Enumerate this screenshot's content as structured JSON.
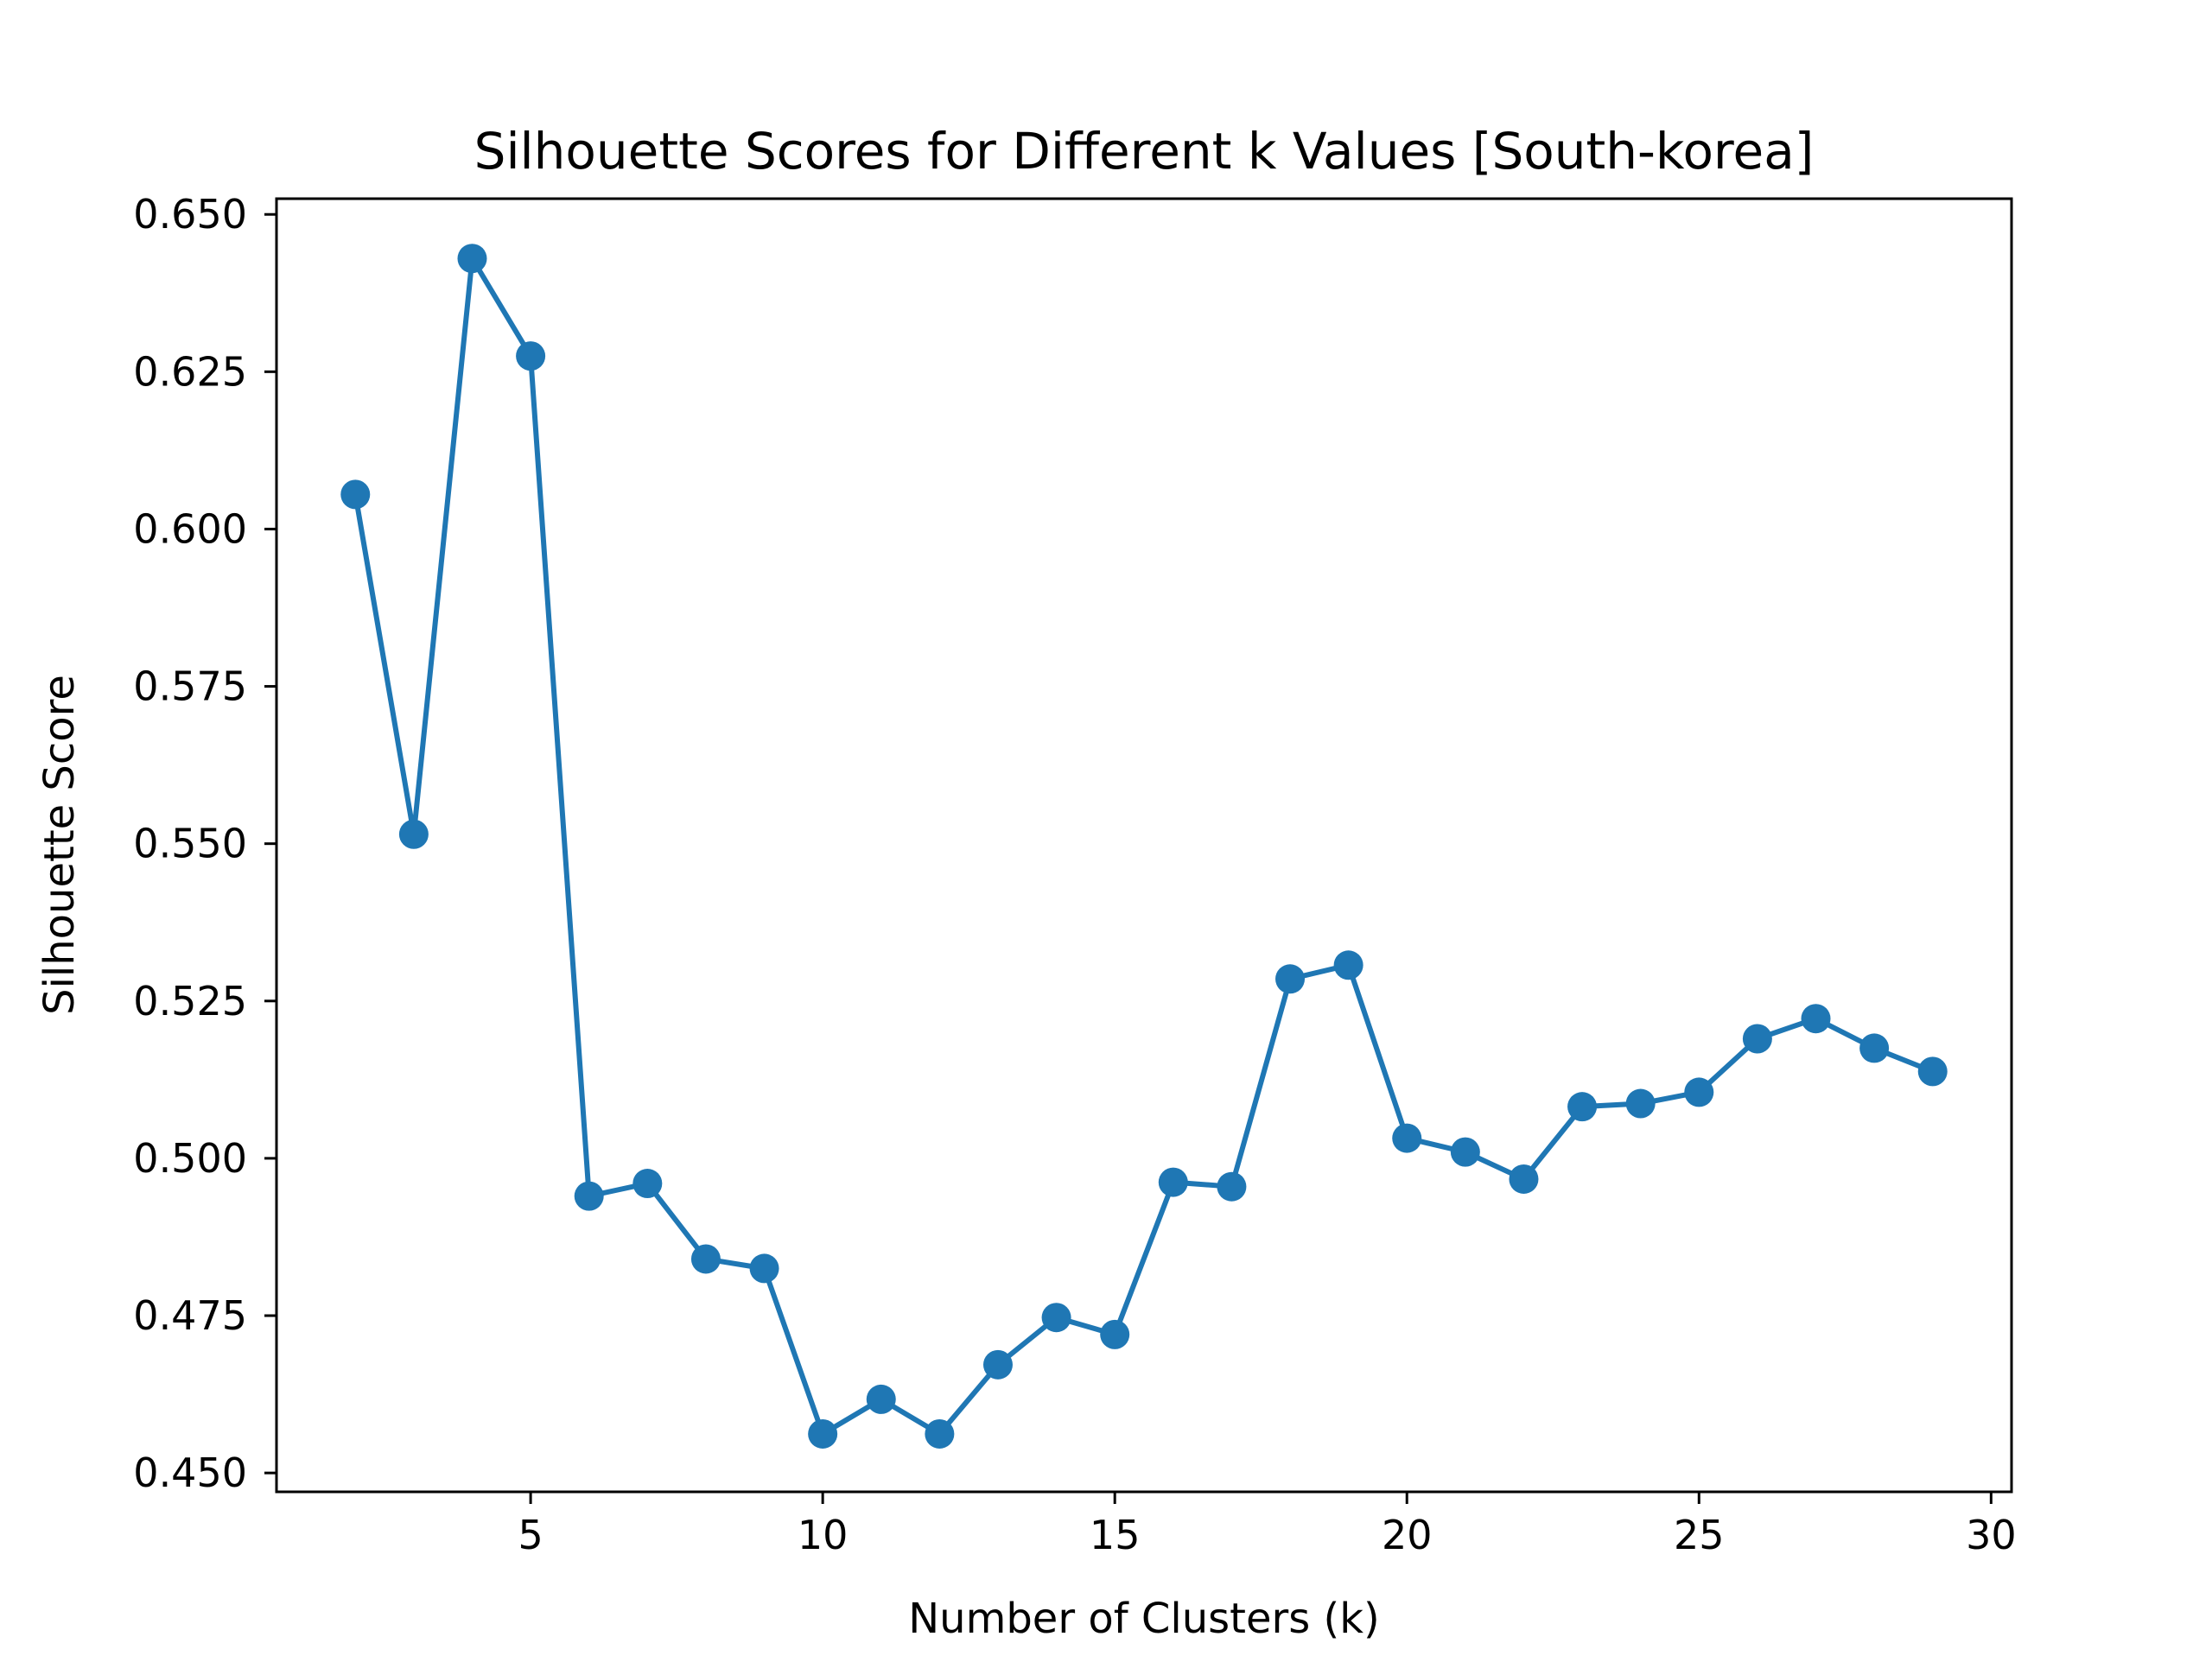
{
  "chart_data": {
    "type": "line",
    "title": "Silhouette Scores for Different k Values [South-korea]",
    "xlabel": "Number of Clusters (k)",
    "ylabel": "Silhouette Score",
    "xlim": [
      0.65,
      30.35
    ],
    "ylim": [
      0.447,
      0.6525
    ],
    "x_ticks": [
      5,
      10,
      15,
      20,
      25,
      30
    ],
    "y_ticks": [
      0.45,
      0.475,
      0.5,
      0.525,
      0.55,
      0.575,
      0.6,
      0.625,
      0.65
    ],
    "x_tick_labels": [
      "5",
      "10",
      "15",
      "20",
      "25",
      "30"
    ],
    "y_tick_labels": [
      "0.450",
      "0.475",
      "0.500",
      "0.525",
      "0.550",
      "0.575",
      "0.600",
      "0.625",
      "0.650"
    ],
    "grid": false,
    "marker": "circle",
    "color": "#1f77b4",
    "series": [
      {
        "x": [
          2,
          3,
          4,
          5,
          6,
          7,
          8,
          9,
          10,
          11,
          12,
          13,
          14,
          15,
          16,
          17,
          18,
          19,
          20,
          21,
          22,
          23,
          24,
          25,
          26,
          27,
          28,
          29
        ],
        "values": [
          0.6055,
          0.5515,
          0.643,
          0.6275,
          0.494,
          0.496,
          0.484,
          0.4825,
          0.4562,
          0.4617,
          0.4562,
          0.4672,
          0.4747,
          0.472,
          0.4962,
          0.4955,
          0.5285,
          0.5307,
          0.5032,
          0.501,
          0.4967,
          0.5082,
          0.5087,
          0.5105,
          0.519,
          0.5222,
          0.5175,
          0.5138
        ]
      }
    ]
  }
}
